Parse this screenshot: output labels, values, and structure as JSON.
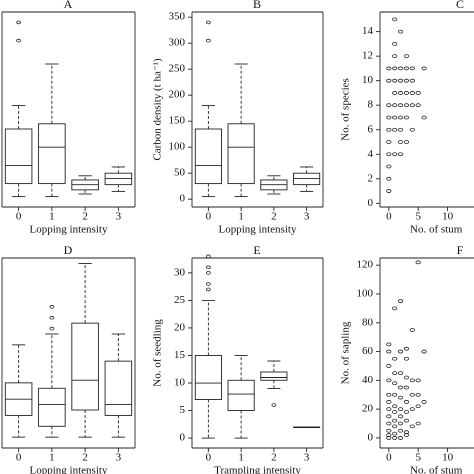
{
  "chart_data": [
    {
      "type": "box",
      "title": "A",
      "xlabel": "Lopping intensity",
      "categories": [
        "0",
        "1",
        "2",
        "3"
      ],
      "ylim": [
        -15,
        360
      ],
      "values": [
        {
          "min": 5,
          "q1": 30,
          "median": 65,
          "q3": 135,
          "max": 180,
          "outliers": [
            305,
            340
          ]
        },
        {
          "min": 5,
          "q1": 30,
          "median": 100,
          "q3": 145,
          "max": 260,
          "outliers": []
        },
        {
          "min": 10,
          "q1": 18,
          "median": 28,
          "q3": 37,
          "max": 45,
          "outliers": []
        },
        {
          "min": 15,
          "q1": 28,
          "median": 40,
          "q3": 50,
          "max": 62,
          "outliers": []
        }
      ]
    },
    {
      "type": "box",
      "title": "B",
      "xlabel": "Lopping intensity",
      "ylabel": "Carbon density (t ha⁻¹)",
      "categories": [
        "0",
        "1",
        "2",
        "3"
      ],
      "ylim": [
        -15,
        360
      ],
      "yticks": [
        0,
        50,
        100,
        150,
        200,
        250,
        300,
        350
      ],
      "values": [
        {
          "min": 5,
          "q1": 30,
          "median": 65,
          "q3": 135,
          "max": 180,
          "outliers": [
            305,
            340
          ]
        },
        {
          "min": 5,
          "q1": 30,
          "median": 100,
          "q3": 145,
          "max": 260,
          "outliers": []
        },
        {
          "min": 10,
          "q1": 18,
          "median": 28,
          "q3": 37,
          "max": 45,
          "outliers": []
        },
        {
          "min": 15,
          "q1": 28,
          "median": 40,
          "q3": 50,
          "max": 62,
          "outliers": []
        }
      ]
    },
    {
      "type": "scatter",
      "title": "C",
      "xlabel": "No. of stum",
      "ylabel": "No. of species",
      "xlim": [
        -1.5,
        14.5
      ],
      "xticks": [
        0,
        5,
        10
      ],
      "ylim": [
        -0.3,
        15.6
      ],
      "yticks": [
        0,
        2,
        4,
        6,
        8,
        10,
        12,
        14
      ],
      "x": [
        1,
        2,
        1,
        3,
        1,
        0,
        1,
        2,
        3,
        4,
        6,
        0,
        1,
        2,
        3,
        4,
        1,
        2,
        3,
        4,
        5,
        0,
        1,
        2,
        3,
        4,
        5,
        0,
        1,
        2,
        3,
        6,
        0,
        1,
        2,
        4,
        0,
        2,
        3,
        0,
        1,
        2,
        0,
        0,
        0
      ],
      "y": [
        15,
        14,
        13,
        12,
        12,
        11,
        11,
        11,
        11,
        11,
        11,
        10,
        10,
        10,
        10,
        10,
        9,
        9,
        9,
        9,
        9,
        8,
        8,
        8,
        8,
        8,
        8,
        7,
        7,
        7,
        7,
        7,
        6,
        6,
        6,
        6,
        5,
        5,
        5,
        4,
        4,
        4,
        3,
        2,
        1
      ]
    },
    {
      "type": "box",
      "title": "D",
      "xlabel": "Lopping intensity",
      "categories": [
        "0",
        "1",
        "2",
        "3"
      ],
      "ylim": [
        0,
        35
      ],
      "values": [
        {
          "min": 2,
          "q1": 6,
          "median": 9,
          "q3": 12,
          "max": 19,
          "outliers": []
        },
        {
          "min": 2,
          "q1": 4,
          "median": 8,
          "q3": 11,
          "max": 21,
          "outliers": [
            22,
            24,
            26
          ]
        },
        {
          "min": 2,
          "q1": 7,
          "median": 12.5,
          "q3": 23,
          "max": 34,
          "outliers": []
        },
        {
          "min": 2,
          "q1": 6,
          "median": 8,
          "q3": 16,
          "max": 21,
          "outliers": []
        }
      ]
    },
    {
      "type": "box",
      "title": "E",
      "xlabel": "Trampling intensity",
      "ylabel": "No. of seedling",
      "categories": [
        "0",
        "1",
        "2",
        "3"
      ],
      "ylim": [
        -1.8,
        32.7
      ],
      "yticks": [
        0,
        5,
        10,
        15,
        20,
        25,
        30
      ],
      "values": [
        {
          "min": 0,
          "q1": 7,
          "median": 10,
          "q3": 15,
          "max": 25,
          "outliers": [
            27,
            28,
            30,
            31,
            33
          ]
        },
        {
          "min": 0,
          "q1": 5,
          "median": 8,
          "q3": 10.5,
          "max": 15,
          "outliers": []
        },
        {
          "min": 9,
          "q1": 10.5,
          "median": 11,
          "q3": 12,
          "max": 14,
          "outliers": [
            6
          ]
        },
        {
          "min": 2,
          "q1": 2,
          "median": 2,
          "q3": 2,
          "max": 2,
          "outliers": []
        }
      ]
    },
    {
      "type": "scatter",
      "title": "F",
      "xlabel": "No. of stum",
      "ylabel": "No. of sapling",
      "xlim": [
        -1.5,
        14.5
      ],
      "xticks": [
        0,
        5,
        10
      ],
      "ylim": [
        -7,
        125
      ],
      "yticks": [
        0,
        20,
        40,
        60,
        80,
        100,
        120
      ],
      "x": [
        0,
        0,
        0,
        0,
        0,
        0,
        0,
        0,
        0,
        0,
        0,
        1,
        1,
        1,
        1,
        1,
        1,
        1,
        1,
        1,
        1,
        2,
        2,
        2,
        2,
        2,
        2,
        2,
        2,
        2,
        3,
        3,
        3,
        3,
        3,
        3,
        3,
        3,
        4,
        4,
        4,
        4,
        4,
        5,
        5,
        5,
        5,
        5,
        6,
        6,
        2,
        1,
        0,
        3
      ],
      "y": [
        2,
        5,
        10,
        15,
        20,
        25,
        30,
        40,
        50,
        60,
        65,
        3,
        8,
        12,
        18,
        22,
        30,
        38,
        45,
        55,
        90,
        5,
        10,
        15,
        20,
        28,
        35,
        45,
        60,
        95,
        4,
        12,
        18,
        25,
        35,
        42,
        55,
        62,
        8,
        20,
        30,
        40,
        75,
        10,
        22,
        30,
        40,
        122,
        25,
        60,
        0,
        0,
        0,
        2
      ]
    }
  ]
}
